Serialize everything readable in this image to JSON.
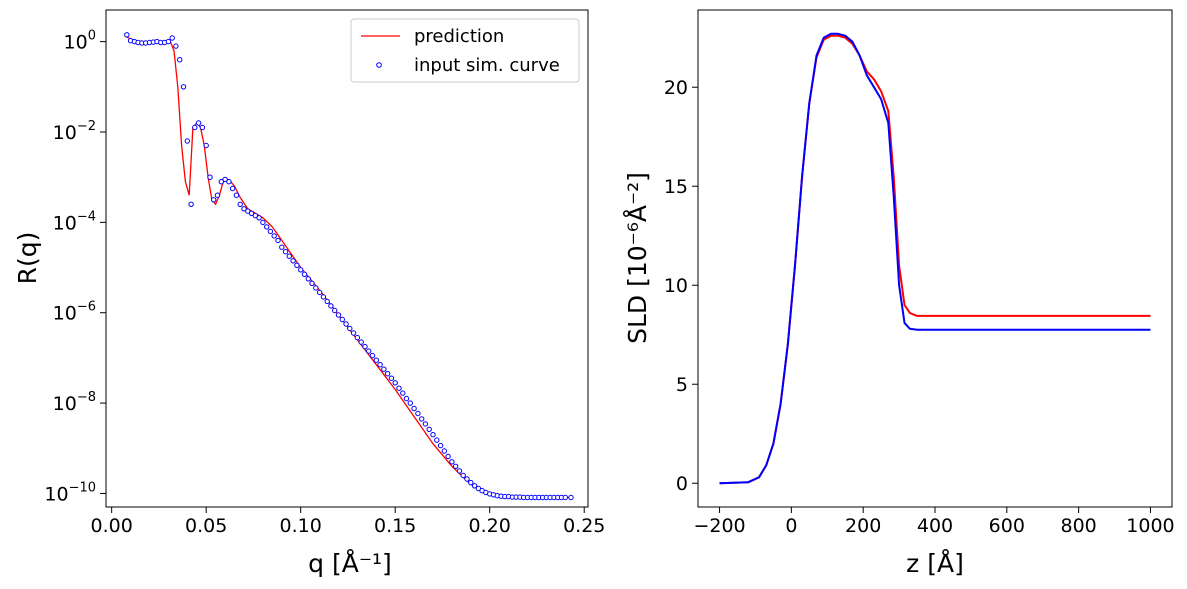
{
  "chart_data": [
    {
      "type": "line",
      "xlabel": "q [Å⁻¹]",
      "ylabel": "R(q)",
      "xlim": [
        -0.003,
        0.252
      ],
      "ylim_log10": [
        -10.3,
        0.7
      ],
      "yscale": "log",
      "grid": false,
      "legend_position": "top-right",
      "x_ticks": [
        "0.00",
        "0.05",
        "0.10",
        "0.15",
        "0.20",
        "0.25"
      ],
      "x_tick_values": [
        0,
        0.05,
        0.1,
        0.15,
        0.2,
        0.25
      ],
      "y_tick_exponents": [
        0,
        -2,
        -4,
        -6,
        -8,
        -10
      ],
      "legend": [
        {
          "label": "prediction",
          "marker": "line",
          "color": "#ff0000"
        },
        {
          "label": "input sim. curve",
          "marker": "circle",
          "color": "#0000ff"
        }
      ],
      "series": [
        {
          "name": "prediction",
          "style": "line",
          "color": "#ff0000",
          "x": [
            0.008,
            0.012,
            0.016,
            0.02,
            0.024,
            0.028,
            0.031,
            0.033,
            0.035,
            0.037,
            0.039,
            0.041,
            0.043,
            0.045,
            0.047,
            0.049,
            0.051,
            0.053,
            0.055,
            0.057,
            0.059,
            0.062,
            0.065,
            0.068,
            0.072,
            0.076,
            0.08,
            0.085,
            0.09,
            0.1,
            0.11,
            0.12,
            0.13,
            0.14,
            0.15,
            0.16,
            0.17,
            0.18,
            0.19,
            0.2,
            0.205,
            0.21,
            0.215,
            0.22,
            0.23,
            0.243
          ],
          "log10_y": [
            0.1,
            0.02,
            0.0,
            -0.01,
            0.0,
            -0.02,
            0.0,
            -0.2,
            -1.0,
            -2.3,
            -3.1,
            -3.4,
            -1.9,
            -1.8,
            -1.9,
            -2.3,
            -3.0,
            -3.5,
            -3.6,
            -3.4,
            -3.1,
            -3.05,
            -3.2,
            -3.45,
            -3.7,
            -3.8,
            -3.9,
            -4.1,
            -4.4,
            -5.0,
            -5.5,
            -6.05,
            -6.6,
            -7.15,
            -7.7,
            -8.3,
            -8.9,
            -9.4,
            -9.8,
            -10.0,
            -10.05,
            -10.07,
            -10.08,
            -10.08,
            -10.09,
            -10.09
          ]
        },
        {
          "name": "input sim. curve",
          "style": "scatter",
          "color": "#0000ff",
          "x": [
            0.008,
            0.01,
            0.012,
            0.014,
            0.016,
            0.018,
            0.02,
            0.022,
            0.024,
            0.026,
            0.028,
            0.03,
            0.032,
            0.034,
            0.036,
            0.038,
            0.04,
            0.042,
            0.044,
            0.046,
            0.048,
            0.05,
            0.052,
            0.054,
            0.056,
            0.058,
            0.06,
            0.062,
            0.064,
            0.066,
            0.068,
            0.07,
            0.072,
            0.074,
            0.076,
            0.078,
            0.08,
            0.082,
            0.084,
            0.086,
            0.088,
            0.09,
            0.092,
            0.094,
            0.096,
            0.098,
            0.1,
            0.102,
            0.104,
            0.106,
            0.108,
            0.11,
            0.112,
            0.114,
            0.116,
            0.118,
            0.12,
            0.122,
            0.124,
            0.126,
            0.128,
            0.13,
            0.132,
            0.134,
            0.136,
            0.138,
            0.14,
            0.142,
            0.144,
            0.146,
            0.148,
            0.15,
            0.152,
            0.154,
            0.156,
            0.158,
            0.16,
            0.162,
            0.164,
            0.166,
            0.168,
            0.17,
            0.172,
            0.174,
            0.176,
            0.178,
            0.18,
            0.182,
            0.184,
            0.186,
            0.188,
            0.19,
            0.192,
            0.194,
            0.196,
            0.198,
            0.2,
            0.202,
            0.204,
            0.206,
            0.208,
            0.21,
            0.212,
            0.214,
            0.216,
            0.218,
            0.22,
            0.222,
            0.224,
            0.226,
            0.228,
            0.23,
            0.232,
            0.234,
            0.236,
            0.238,
            0.24,
            0.243
          ],
          "log10_y": [
            0.15,
            0.02,
            0.0,
            -0.02,
            -0.03,
            -0.03,
            -0.02,
            -0.01,
            0.0,
            -0.02,
            -0.02,
            0.0,
            0.08,
            -0.1,
            -0.4,
            -1.0,
            -2.2,
            -3.6,
            -1.9,
            -1.8,
            -1.9,
            -2.3,
            -3.0,
            -3.5,
            -3.4,
            -3.1,
            -3.05,
            -3.1,
            -3.25,
            -3.4,
            -3.6,
            -3.7,
            -3.75,
            -3.8,
            -3.85,
            -3.9,
            -4.0,
            -4.1,
            -4.2,
            -4.3,
            -4.4,
            -4.55,
            -4.65,
            -4.75,
            -4.85,
            -4.95,
            -5.05,
            -5.15,
            -5.25,
            -5.35,
            -5.45,
            -5.55,
            -5.65,
            -5.75,
            -5.85,
            -5.95,
            -6.05,
            -6.15,
            -6.25,
            -6.35,
            -6.45,
            -6.55,
            -6.65,
            -6.75,
            -6.85,
            -6.95,
            -7.05,
            -7.15,
            -7.25,
            -7.35,
            -7.45,
            -7.55,
            -7.67,
            -7.78,
            -7.9,
            -8.0,
            -8.12,
            -8.23,
            -8.35,
            -8.46,
            -8.58,
            -8.7,
            -8.82,
            -8.94,
            -9.06,
            -9.18,
            -9.3,
            -9.4,
            -9.5,
            -9.6,
            -9.68,
            -9.76,
            -9.83,
            -9.89,
            -9.94,
            -9.98,
            -10.01,
            -10.03,
            -10.05,
            -10.06,
            -10.07,
            -10.07,
            -10.08,
            -10.08,
            -10.08,
            -10.09,
            -10.09,
            -10.09,
            -10.09,
            -10.09,
            -10.09,
            -10.09,
            -10.09,
            -10.09,
            -10.09,
            -10.09,
            -10.09,
            -10.09
          ]
        }
      ]
    },
    {
      "type": "line",
      "xlabel": "z [Å]",
      "ylabel": "SLD [10⁻⁶Å⁻²]",
      "xlim": [
        -260,
        1060
      ],
      "ylim": [
        -1.2,
        23.9
      ],
      "grid": false,
      "x_ticks": [
        "−200",
        "0",
        "200",
        "400",
        "600",
        "800",
        "1000"
      ],
      "x_tick_values": [
        -200,
        0,
        200,
        400,
        600,
        800,
        1000
      ],
      "y_ticks": [
        "0",
        "5",
        "10",
        "15",
        "20"
      ],
      "y_tick_values": [
        0,
        5,
        10,
        15,
        20
      ],
      "series": [
        {
          "color": "#ff0000",
          "x": [
            -200,
            -120,
            -90,
            -70,
            -50,
            -30,
            -10,
            0,
            10,
            30,
            50,
            70,
            90,
            110,
            130,
            150,
            170,
            190,
            210,
            230,
            250,
            270,
            285,
            300,
            315,
            330,
            350,
            400,
            600,
            800,
            1000
          ],
          "y": [
            0,
            0.05,
            0.3,
            0.9,
            2.0,
            4.0,
            7.0,
            9.0,
            11.0,
            15.5,
            19.2,
            21.5,
            22.4,
            22.6,
            22.6,
            22.5,
            22.2,
            21.6,
            20.8,
            20.4,
            19.8,
            18.8,
            15.5,
            11.0,
            9.0,
            8.6,
            8.45,
            8.45,
            8.45,
            8.45,
            8.45
          ]
        },
        {
          "color": "#0000ff",
          "x": [
            -200,
            -120,
            -90,
            -70,
            -50,
            -30,
            -10,
            0,
            10,
            30,
            50,
            70,
            90,
            110,
            130,
            150,
            170,
            190,
            210,
            230,
            250,
            270,
            285,
            300,
            315,
            330,
            350,
            400,
            600,
            800,
            1000
          ],
          "y": [
            0,
            0.05,
            0.3,
            0.9,
            2.0,
            4.0,
            7.0,
            9.0,
            11.0,
            15.5,
            19.2,
            21.6,
            22.5,
            22.7,
            22.7,
            22.6,
            22.3,
            21.6,
            20.6,
            20.0,
            19.4,
            18.2,
            14.5,
            10.0,
            8.1,
            7.8,
            7.75,
            7.75,
            7.75,
            7.75,
            7.75
          ]
        }
      ]
    }
  ]
}
